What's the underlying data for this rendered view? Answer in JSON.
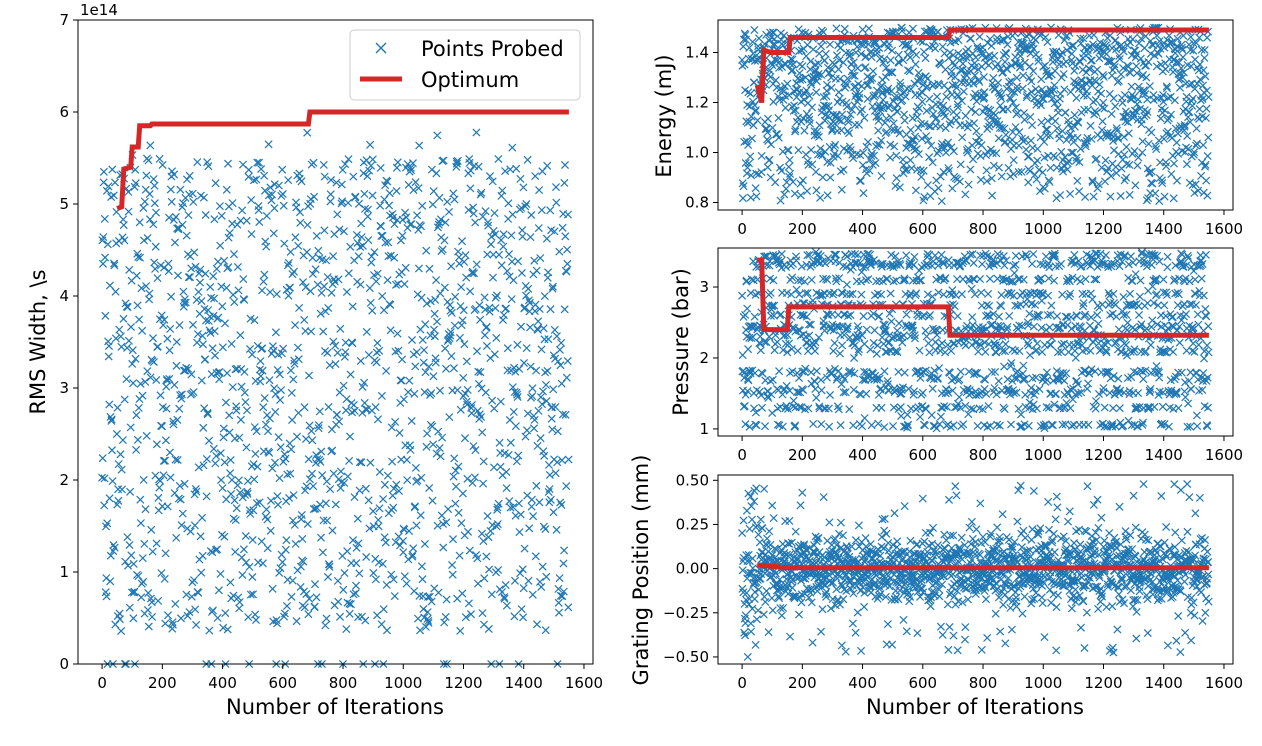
{
  "colors": {
    "points": "#1f77b4",
    "optimum": "#d62728",
    "axes": "#000000",
    "background": "#ffffff"
  },
  "chart_data": [
    {
      "id": "rms",
      "type": "scatter",
      "title": "",
      "xlabel": "Number of Iterations",
      "ylabel": "RMS Width, \\s",
      "offset_text": "1e14",
      "xlim": [
        -80,
        1630
      ],
      "ylim": [
        0,
        7
      ],
      "xticks": [
        0,
        200,
        400,
        600,
        800,
        1000,
        1200,
        1400,
        1600
      ],
      "yticks": [
        0,
        1,
        2,
        3,
        4,
        5,
        6,
        7
      ],
      "legend": {
        "position": "top-right",
        "entries": [
          "Points Probed",
          "Optimum"
        ]
      },
      "n_points": 1550,
      "probe_envelope": {
        "min": 0.35,
        "max": 5.9
      },
      "grid": false,
      "series": [
        {
          "name": "Points Probed",
          "kind": "scatter",
          "marker": "x"
        },
        {
          "name": "Optimum",
          "kind": "step",
          "points": [
            [
              50,
              4.95
            ],
            [
              65,
              4.97
            ],
            [
              72,
              5.38
            ],
            [
              95,
              5.4
            ],
            [
              100,
              5.62
            ],
            [
              120,
              5.62
            ],
            [
              125,
              5.85
            ],
            [
              160,
              5.85
            ],
            [
              165,
              5.87
            ],
            [
              685,
              5.87
            ],
            [
              690,
              6.0
            ],
            [
              1550,
              6.0
            ]
          ]
        }
      ]
    },
    {
      "id": "energy",
      "type": "scatter",
      "title": "",
      "xlabel": "",
      "ylabel": "Energy (mJ)",
      "xlim": [
        -80,
        1630
      ],
      "ylim": [
        0.77,
        1.53
      ],
      "xticks": [
        0,
        200,
        400,
        600,
        800,
        1000,
        1200,
        1400,
        1600
      ],
      "yticks": [
        0.8,
        1.0,
        1.2,
        1.4
      ],
      "n_points": 1550,
      "probe_envelope": {
        "min": 0.8,
        "max": 1.5
      },
      "grid": false,
      "series": [
        {
          "name": "Points Probed",
          "kind": "scatter",
          "marker": "x"
        },
        {
          "name": "Optimum",
          "kind": "step",
          "points": [
            [
              50,
              1.27
            ],
            [
              65,
              1.2
            ],
            [
              72,
              1.41
            ],
            [
              95,
              1.4
            ],
            [
              155,
              1.4
            ],
            [
              160,
              1.46
            ],
            [
              685,
              1.46
            ],
            [
              690,
              1.49
            ],
            [
              1550,
              1.49
            ]
          ]
        }
      ]
    },
    {
      "id": "pressure",
      "type": "scatter",
      "title": "",
      "xlabel": "",
      "ylabel": "Pressure (bar)",
      "xlim": [
        -80,
        1630
      ],
      "ylim": [
        0.9,
        3.55
      ],
      "xticks": [
        0,
        200,
        400,
        600,
        800,
        1000,
        1200,
        1400,
        1600
      ],
      "yticks": [
        1,
        2,
        3
      ],
      "n_points": 1550,
      "probe_envelope": {
        "min": 1.0,
        "max": 3.5
      },
      "grid": false,
      "series": [
        {
          "name": "Points Probed",
          "kind": "scatter",
          "marker": "x"
        },
        {
          "name": "Optimum",
          "kind": "step",
          "points": [
            [
              50,
              3.38
            ],
            [
              65,
              3.38
            ],
            [
              72,
              2.4
            ],
            [
              150,
              2.4
            ],
            [
              155,
              2.72
            ],
            [
              685,
              2.72
            ],
            [
              690,
              2.32
            ],
            [
              1550,
              2.32
            ]
          ]
        }
      ]
    },
    {
      "id": "grating",
      "type": "scatter",
      "title": "",
      "xlabel": "Number of Iterations",
      "ylabel": "Grating Position (mm)",
      "xlim": [
        -80,
        1630
      ],
      "ylim": [
        -0.54,
        0.53
      ],
      "xticks": [
        0,
        200,
        400,
        600,
        800,
        1000,
        1200,
        1400,
        1600
      ],
      "yticks": [
        -0.5,
        -0.25,
        0.0,
        0.25,
        0.5
      ],
      "ytick_labels": [
        "−0.50",
        "−0.25",
        "0.00",
        "0.25",
        "0.50"
      ],
      "n_points": 1550,
      "probe_envelope": {
        "min": -0.5,
        "max": 0.5
      },
      "grid": false,
      "series": [
        {
          "name": "Points Probed",
          "kind": "scatter",
          "marker": "x"
        },
        {
          "name": "Optimum",
          "kind": "step",
          "points": [
            [
              50,
              0.02
            ],
            [
              120,
              0.01
            ],
            [
              130,
              0.005
            ],
            [
              1550,
              0.005
            ]
          ]
        }
      ]
    }
  ]
}
